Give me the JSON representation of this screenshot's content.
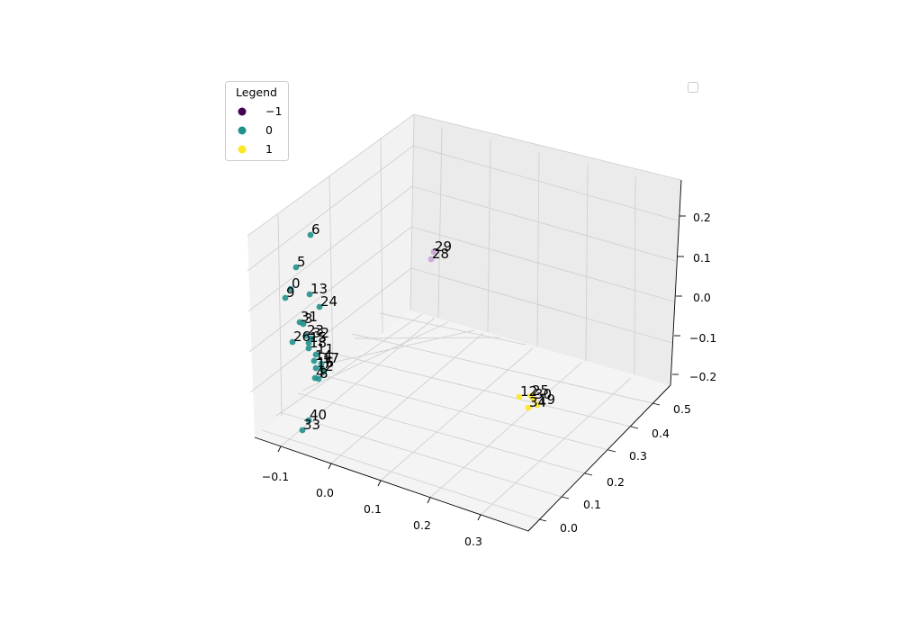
{
  "chart_data": {
    "type": "scatter",
    "projection": "3d",
    "title": "",
    "xlabel": "",
    "ylabel": "",
    "zlabel": "",
    "grid": true,
    "legend": {
      "title": "Legend",
      "placement": "top-left",
      "entries": [
        {
          "label": "−1",
          "color": "#440154"
        },
        {
          "label": "0",
          "color": "#21918c"
        },
        {
          "label": "1",
          "color": "#fde725"
        }
      ]
    },
    "empty_legend_placement": "top-right",
    "x_ticks": [
      "−0.1",
      "0.0",
      "0.1",
      "0.2",
      "0.3"
    ],
    "y_ticks": [
      "0.0",
      "0.1",
      "0.2",
      "0.3",
      "0.4",
      "0.5"
    ],
    "z_ticks": [
      "−0.2",
      "−0.1",
      "0.0",
      "0.1",
      "0.2"
    ],
    "xlim": [
      -0.15,
      0.38
    ],
    "ylim": [
      -0.05,
      0.52
    ],
    "zlim": [
      -0.2,
      0.27
    ],
    "series": [
      {
        "color": "#21918c",
        "points": [
          {
            "label": "6",
            "x": -0.03,
            "y": 0.0,
            "z": 0.23
          },
          {
            "label": "5",
            "x": -0.05,
            "y": 0.0,
            "z": 0.14
          },
          {
            "label": "0",
            "x": -0.06,
            "y": 0.0,
            "z": 0.07
          },
          {
            "label": "9",
            "x": -0.07,
            "y": 0.0,
            "z": 0.05
          },
          {
            "label": "13",
            "x": -0.03,
            "y": 0.0,
            "z": 0.05
          },
          {
            "label": "24",
            "x": -0.02,
            "y": 0.0,
            "z": 0.01
          },
          {
            "label": "31",
            "x": -0.06,
            "y": 0.0,
            "z": -0.01
          },
          {
            "label": "3",
            "x": -0.06,
            "y": 0.0,
            "z": -0.02
          },
          {
            "label": "23",
            "x": -0.05,
            "y": 0.0,
            "z": -0.04
          },
          {
            "label": "32",
            "x": -0.04,
            "y": 0.0,
            "z": -0.04
          },
          {
            "label": "26",
            "x": -0.07,
            "y": 0.0,
            "z": -0.06
          },
          {
            "label": "15",
            "x": -0.05,
            "y": 0.0,
            "z": -0.06
          },
          {
            "label": "18",
            "x": -0.05,
            "y": 0.0,
            "z": -0.07
          },
          {
            "label": "11",
            "x": -0.03,
            "y": 0.0,
            "z": -0.09
          },
          {
            "label": "14",
            "x": -0.03,
            "y": 0.0,
            "z": -0.1
          },
          {
            "label": "17",
            "x": -0.02,
            "y": 0.0,
            "z": -0.1
          },
          {
            "label": "16",
            "x": -0.03,
            "y": 0.0,
            "z": -0.11
          },
          {
            "label": "7",
            "x": -0.02,
            "y": 0.0,
            "z": -0.11
          },
          {
            "label": "2",
            "x": -0.02,
            "y": 0.0,
            "z": -0.12
          },
          {
            "label": "4",
            "x": -0.03,
            "y": 0.0,
            "z": -0.13
          },
          {
            "label": "8",
            "x": -0.02,
            "y": 0.0,
            "z": -0.13
          },
          {
            "label": "40",
            "x": -0.03,
            "y": 0.0,
            "z": -0.23
          },
          {
            "label": "33",
            "x": -0.04,
            "y": 0.0,
            "z": -0.25
          }
        ]
      },
      {
        "color": "#c9a5d6",
        "points": [
          {
            "label": "29",
            "x": 0.05,
            "y": 0.3,
            "z": 0.2
          },
          {
            "label": "28",
            "x": 0.05,
            "y": 0.3,
            "z": 0.19
          }
        ]
      },
      {
        "color": "#fde725",
        "points": [
          {
            "label": "12",
            "x": 0.33,
            "y": 0.02,
            "z": 0.0
          },
          {
            "label": "25",
            "x": 0.34,
            "y": 0.02,
            "z": 0.01
          },
          {
            "label": "30",
            "x": 0.35,
            "y": 0.02,
            "z": 0.01
          },
          {
            "label": "19",
            "x": 0.36,
            "y": 0.02,
            "z": -0.01
          },
          {
            "label": "34",
            "x": 0.35,
            "y": 0.02,
            "z": -0.02
          }
        ]
      }
    ]
  }
}
